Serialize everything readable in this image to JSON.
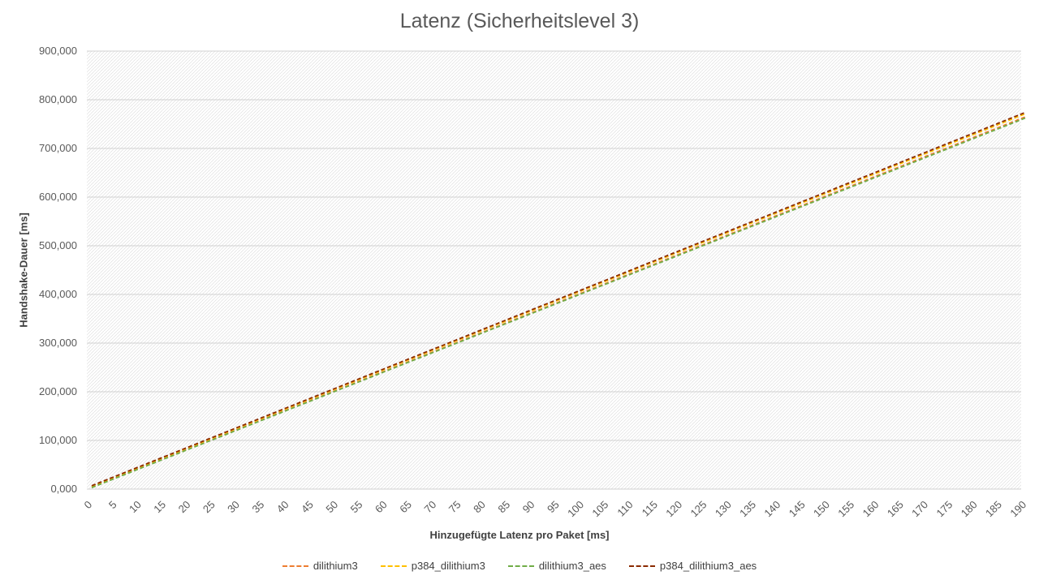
{
  "chart_data": {
    "type": "line",
    "title": "Latenz (Sicherheitslevel 3)",
    "xlabel": "Hinzugefügte Latenz pro Paket [ms]",
    "ylabel": "Handshake-Dauer [ms]",
    "x": [
      0,
      1,
      2,
      3,
      4,
      5,
      6,
      7,
      8,
      9,
      10,
      11,
      12,
      13,
      14,
      15,
      16,
      17,
      18,
      19,
      20,
      21,
      22,
      23,
      24,
      25,
      26,
      27,
      28,
      29,
      30,
      31,
      32,
      33,
      34,
      35,
      36,
      37,
      38,
      39,
      40,
      41,
      42,
      43,
      44,
      45,
      46,
      47,
      48,
      49,
      50,
      51,
      52,
      53,
      54,
      55,
      56,
      57,
      58,
      59,
      60,
      61,
      62,
      63,
      64,
      65,
      66,
      67,
      68,
      69,
      70,
      71,
      72,
      73,
      74,
      75,
      76,
      77,
      78,
      79,
      80,
      81,
      82,
      83,
      84,
      85,
      86,
      87,
      88,
      89,
      90,
      91,
      92,
      93,
      94,
      95,
      96,
      97,
      98,
      99,
      100,
      101,
      102,
      103,
      104,
      105,
      106,
      107,
      108,
      109,
      110,
      111,
      112,
      113,
      114,
      115,
      116,
      117,
      118,
      119,
      120,
      121,
      122,
      123,
      124,
      125,
      126,
      127,
      128,
      129,
      130,
      131,
      132,
      133,
      134,
      135,
      136,
      137,
      138,
      139,
      140,
      141,
      142,
      143,
      144,
      145,
      146,
      147,
      148,
      149,
      150,
      151,
      152,
      153,
      154,
      155,
      156,
      157,
      158,
      159,
      160,
      161,
      162,
      163,
      164,
      165,
      166,
      167,
      168,
      169,
      170,
      171,
      172,
      173,
      174,
      175,
      176,
      177,
      178,
      179,
      180,
      181,
      182,
      183,
      184,
      185,
      186,
      187,
      188,
      189,
      190
    ],
    "x_tick_labels": [
      "0",
      "5",
      "10",
      "15",
      "20",
      "25",
      "30",
      "35",
      "40",
      "45",
      "50",
      "55",
      "60",
      "65",
      "70",
      "75",
      "80",
      "85",
      "90",
      "95",
      "100",
      "105",
      "110",
      "115",
      "120",
      "125",
      "130",
      "135",
      "140",
      "145",
      "150",
      "155",
      "160",
      "165",
      "170",
      "175",
      "180",
      "185",
      "190"
    ],
    "y_tick_labels": [
      "0,000",
      "100,000",
      "200,000",
      "300,000",
      "400,000",
      "500,000",
      "600,000",
      "700,000",
      "800,000",
      "900,000"
    ],
    "ylim": [
      0,
      900
    ],
    "xlim": [
      0,
      190
    ],
    "grid": true,
    "legend_position": "bottom",
    "series": [
      {
        "name": "dilithium3",
        "color": "#ED7D31",
        "intercept": 3.5,
        "slope": 4.01
      },
      {
        "name": "p384_dilithium3",
        "color": "#FFC000",
        "intercept": 6.0,
        "slope": 4.03
      },
      {
        "name": "dilithium3_aes",
        "color": "#70AD47",
        "intercept": 3.0,
        "slope": 4.0
      },
      {
        "name": "p384_dilithium3_aes",
        "color": "#8B2A00",
        "intercept": 7.0,
        "slope": 4.04
      }
    ]
  }
}
